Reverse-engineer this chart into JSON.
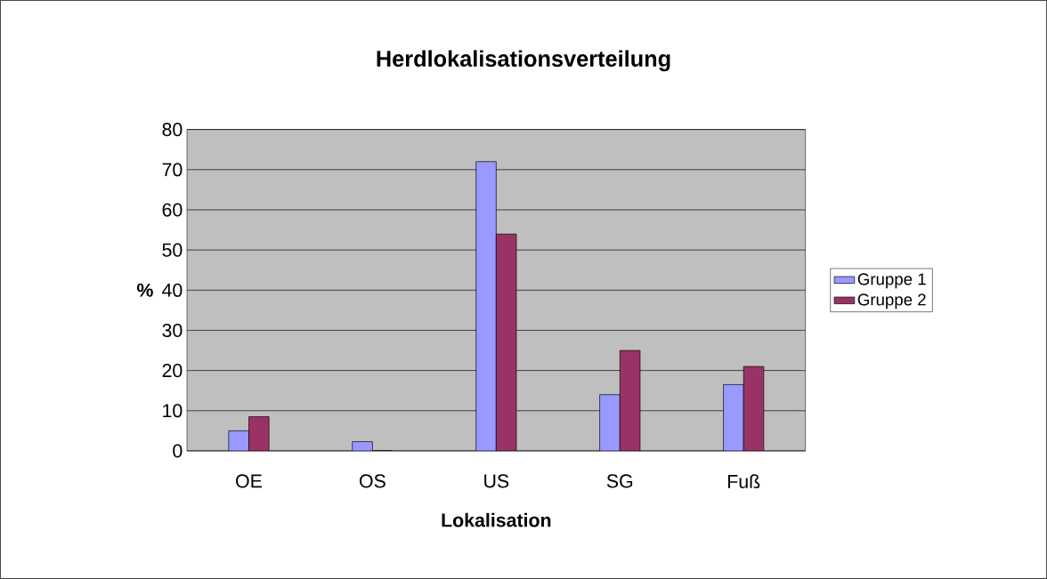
{
  "chart_data": {
    "type": "bar",
    "title": "Herdlokalisationsverteilung",
    "xlabel": "Lokalisation",
    "ylabel": "%",
    "categories": [
      "OE",
      "OS",
      "US",
      "SG",
      "Fuß"
    ],
    "series": [
      {
        "name": "Gruppe 1",
        "color": "#9999ff",
        "values": [
          5,
          2.3,
          72,
          14,
          16.5
        ]
      },
      {
        "name": "Gruppe 2",
        "color": "#993366",
        "values": [
          8.5,
          0,
          54,
          25,
          21
        ]
      }
    ],
    "ylim": [
      0,
      80
    ],
    "yticks": [
      0,
      10,
      20,
      30,
      40,
      50,
      60,
      70,
      80
    ],
    "grid": "y",
    "legend": "right"
  }
}
